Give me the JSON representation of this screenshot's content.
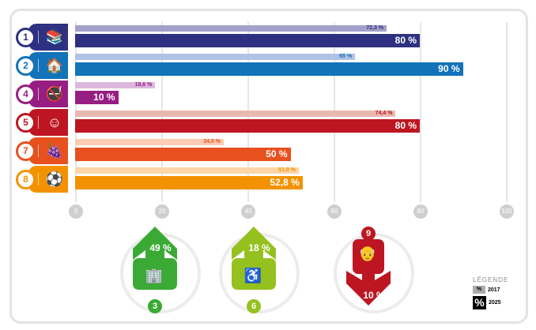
{
  "chart_data": {
    "type": "bar",
    "orientation": "horizontal",
    "xlim": [
      0,
      100
    ],
    "xticks": [
      "0",
      "20",
      "40",
      "60",
      "80",
      "100"
    ],
    "grid": true,
    "categories": [
      "1",
      "2",
      "4",
      "5",
      "7",
      "8"
    ],
    "icons": [
      "books-apple-icon",
      "house-tree-icon",
      "no-smoking-icon",
      "smiley-icon",
      "vegetables-fruit-icon",
      "soccer-player-icon"
    ],
    "colors": [
      "#2e3081",
      "#1273b9",
      "#961e82",
      "#bd1622",
      "#e8501e",
      "#f39200"
    ],
    "light_colors": [
      "#a4a0cb",
      "#b1c3e4",
      "#dcb8dc",
      "#e9b9b0",
      "#fbcdb2",
      "#fcd6a6"
    ],
    "series": [
      {
        "name": "2017",
        "values": [
          72.3,
          65,
          18.6,
          74.4,
          34.5,
          51.9
        ],
        "labels": [
          "72,3 %",
          "65 %",
          "18,6 %",
          "74,4 %",
          "34,5 %",
          "51,9 %"
        ]
      },
      {
        "name": "2025",
        "values": [
          80,
          90,
          10,
          80,
          50,
          52.8
        ],
        "labels": [
          "80 %",
          "90 %",
          "10 %",
          "80 %",
          "50 %",
          "52,8 %"
        ]
      }
    ]
  },
  "indicators": [
    {
      "num": "3",
      "value": "49 %",
      "direction": "up",
      "color": "#3aaa35",
      "icon": "buildings-icon"
    },
    {
      "num": "6",
      "value": "18 %",
      "direction": "up",
      "color": "#95c11f",
      "icon": "house-disabled-elderly-icon"
    },
    {
      "num": "9",
      "value": "10 %",
      "direction": "down",
      "color": "#bd1622",
      "icon": "elderly-person-icon"
    }
  ],
  "legend": {
    "title": "LÉGENDE",
    "symbol": "%",
    "y2017": "2017",
    "y2025": "2025"
  }
}
